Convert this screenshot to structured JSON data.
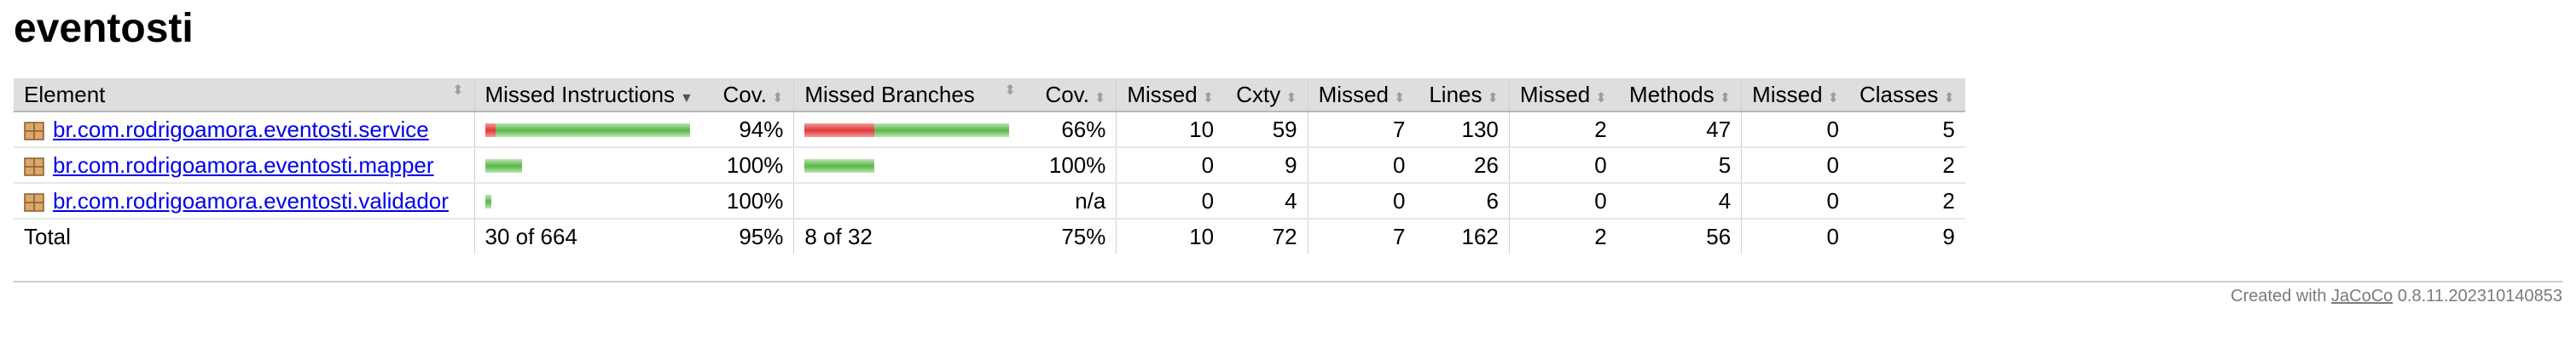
{
  "title": "eventosti",
  "table": {
    "headers": {
      "element": "Element",
      "missed_instructions": "Missed Instructions",
      "cov1": "Cov.",
      "missed_branches": "Missed Branches",
      "cov2": "Cov.",
      "missed_cxty": "Missed",
      "cxty": "Cxty",
      "missed_lines": "Missed",
      "lines": "Lines",
      "missed_methods": "Missed",
      "methods": "Methods",
      "missed_classes": "Missed",
      "classes": "Classes"
    },
    "rows": [
      {
        "element": "br.com.rodrigoamora.eventosti.service",
        "instr_missed_fraction": 0.05,
        "instr_covered_fraction": 0.95,
        "cov1": "94%",
        "branch_missed_fraction": 0.34,
        "branch_covered_fraction": 0.66,
        "cov2": "66%",
        "missed_cxty": "10",
        "cxty": "59",
        "missed_lines": "7",
        "lines": "130",
        "missed_methods": "2",
        "methods": "47",
        "missed_classes": "0",
        "classes": "5"
      },
      {
        "element": "br.com.rodrigoamora.eventosti.mapper",
        "instr_missed_fraction": 0.0,
        "instr_covered_fraction": 0.18,
        "cov1": "100%",
        "branch_missed_fraction": 0.0,
        "branch_covered_fraction": 0.34,
        "cov2": "100%",
        "missed_cxty": "0",
        "cxty": "9",
        "missed_lines": "0",
        "lines": "26",
        "missed_methods": "0",
        "methods": "5",
        "missed_classes": "0",
        "classes": "2"
      },
      {
        "element": "br.com.rodrigoamora.eventosti.validador",
        "instr_missed_fraction": 0.0,
        "instr_covered_fraction": 0.03,
        "cov1": "100%",
        "branch_missed_fraction": 0.0,
        "branch_covered_fraction": 0.0,
        "cov2": "n/a",
        "missed_cxty": "0",
        "cxty": "4",
        "missed_lines": "0",
        "lines": "6",
        "missed_methods": "0",
        "methods": "4",
        "missed_classes": "0",
        "classes": "2"
      }
    ],
    "total": {
      "label": "Total",
      "instructions": "30 of 664",
      "cov1": "95%",
      "branches": "8 of 32",
      "cov2": "75%",
      "missed_cxty": "10",
      "cxty": "72",
      "missed_lines": "7",
      "lines": "162",
      "missed_methods": "2",
      "methods": "56",
      "missed_classes": "0",
      "classes": "9"
    }
  },
  "footer": {
    "prefix": "Created with",
    "link": "JaCoCo",
    "version": "0.8.11.202310140853"
  },
  "colors": {
    "missed": "#e03a3a",
    "covered": "#59b648",
    "header_bg": "#dedede",
    "link": "#0000ee"
  },
  "icons": {
    "package": "package-icon",
    "sort": "sort-arrows-icon",
    "sort_desc": "sort-down-icon"
  }
}
